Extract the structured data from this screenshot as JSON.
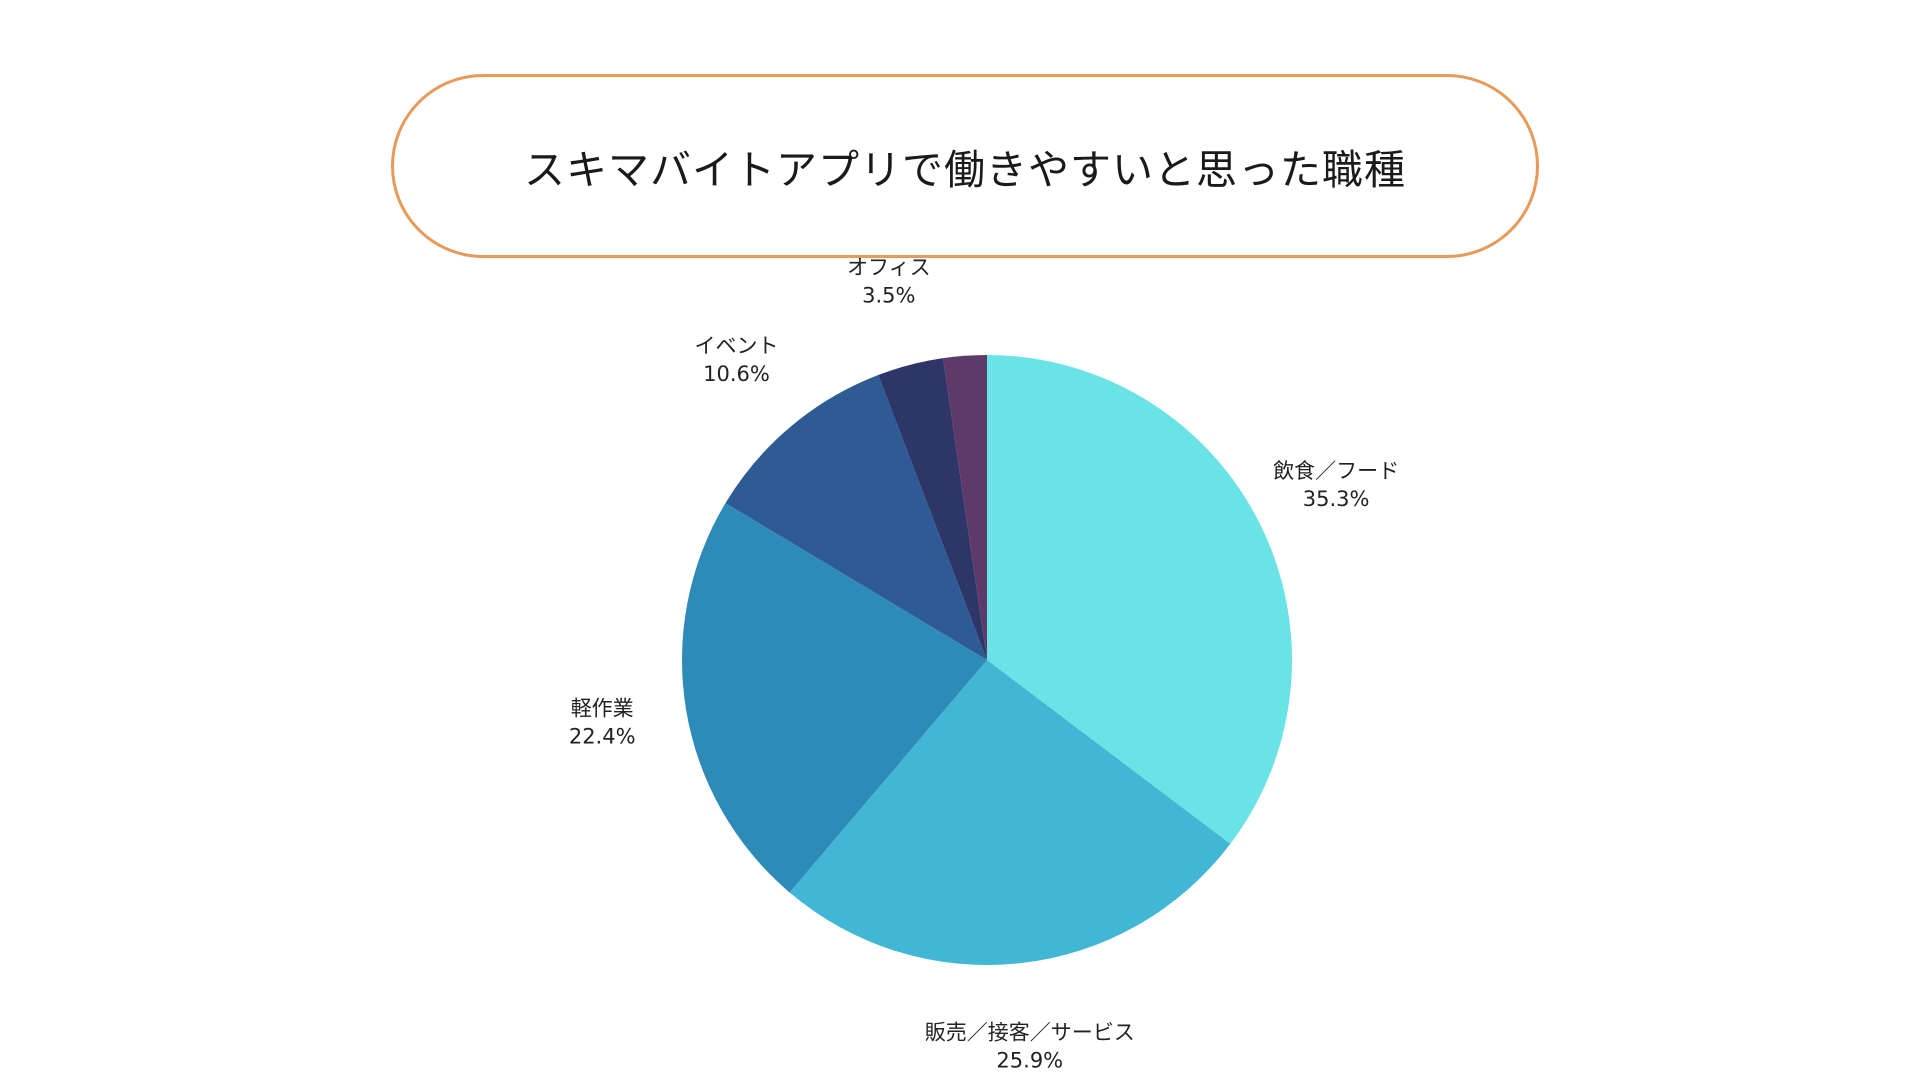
{
  "title": "スキマバイトアプリで働きやすいと思った職種",
  "colors": {
    "title_border": "#E79A59"
  },
  "chart_data": {
    "type": "pie",
    "title": "スキマバイトアプリで働きやすいと思った職種",
    "start": "12 o'clock",
    "direction": "clockwise",
    "slices": [
      {
        "label": "飲食／フード",
        "value": 35.3,
        "value_label": "35.3%",
        "color": "#6AE3E6"
      },
      {
        "label": "販売／接客／サービス",
        "value": 25.9,
        "value_label": "25.9%",
        "color": "#42B6D5"
      },
      {
        "label": "軽作業",
        "value": 22.4,
        "value_label": "22.4%",
        "color": "#2E8BB8"
      },
      {
        "label": "イベント",
        "value": 10.6,
        "value_label": "10.6%",
        "color": "#2E5B93"
      },
      {
        "label": "オフィス",
        "value": 3.5,
        "value_label": "3.5%",
        "color": "#2E3568"
      },
      {
        "label": "",
        "value": 2.3,
        "value_label": "",
        "color": "#5E3A68"
      }
    ]
  }
}
